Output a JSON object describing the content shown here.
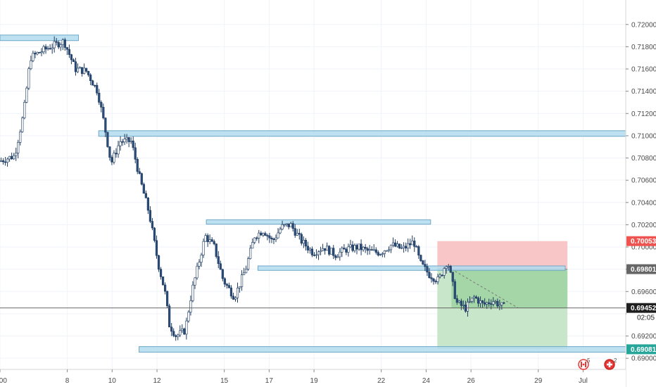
{
  "chart_data": {
    "type": "candlestick",
    "title": "",
    "xlabel": "",
    "ylabel": "",
    "ylim": [
      0.689,
      0.7222
    ],
    "y_ticks": [
      "0.72000",
      "0.71800",
      "0.71600",
      "0.71400",
      "0.71200",
      "0.71000",
      "0.70800",
      "0.70600",
      "0.70400",
      "0.70200",
      "0.70000",
      "0.69800",
      "0.69600",
      "0.69400",
      "0.69200",
      "0.69000"
    ],
    "x_ticks": [
      ":00",
      "8",
      "10",
      "12",
      "15",
      "17",
      "19",
      "22",
      "24",
      "26",
      "29",
      "Jul"
    ],
    "x_tick_days": [
      5,
      8,
      10,
      12,
      15,
      17,
      19,
      22,
      24,
      26,
      29,
      31
    ],
    "xlim_days": [
      5.0,
      32.9
    ],
    "grid": true,
    "price_path": [
      {
        "d": 5.0,
        "v": 0.7077
      },
      {
        "d": 5.7,
        "v": 0.7082
      },
      {
        "d": 6.1,
        "v": 0.712
      },
      {
        "d": 6.4,
        "v": 0.717
      },
      {
        "d": 6.8,
        "v": 0.7175
      },
      {
        "d": 7.3,
        "v": 0.718
      },
      {
        "d": 7.9,
        "v": 0.7185
      },
      {
        "d": 8.4,
        "v": 0.716
      },
      {
        "d": 8.9,
        "v": 0.7158
      },
      {
        "d": 9.4,
        "v": 0.714
      },
      {
        "d": 9.7,
        "v": 0.711
      },
      {
        "d": 10.0,
        "v": 0.7075
      },
      {
        "d": 10.4,
        "v": 0.7095
      },
      {
        "d": 10.9,
        "v": 0.7095
      },
      {
        "d": 11.3,
        "v": 0.706
      },
      {
        "d": 11.7,
        "v": 0.703
      },
      {
        "d": 12.1,
        "v": 0.6985
      },
      {
        "d": 12.4,
        "v": 0.696
      },
      {
        "d": 12.6,
        "v": 0.693
      },
      {
        "d": 12.9,
        "v": 0.692
      },
      {
        "d": 13.3,
        "v": 0.6925
      },
      {
        "d": 13.6,
        "v": 0.696
      },
      {
        "d": 13.9,
        "v": 0.6985
      },
      {
        "d": 14.2,
        "v": 0.701
      },
      {
        "d": 14.6,
        "v": 0.7
      },
      {
        "d": 15.0,
        "v": 0.697
      },
      {
        "d": 15.5,
        "v": 0.6955
      },
      {
        "d": 16.0,
        "v": 0.698
      },
      {
        "d": 16.4,
        "v": 0.701
      },
      {
        "d": 16.8,
        "v": 0.7015
      },
      {
        "d": 17.2,
        "v": 0.7005
      },
      {
        "d": 17.6,
        "v": 0.7018
      },
      {
        "d": 18.0,
        "v": 0.702
      },
      {
        "d": 18.5,
        "v": 0.7005
      },
      {
        "d": 19.0,
        "v": 0.6995
      },
      {
        "d": 19.5,
        "v": 0.7
      },
      {
        "d": 20.0,
        "v": 0.6993
      },
      {
        "d": 20.5,
        "v": 0.6998
      },
      {
        "d": 21.0,
        "v": 0.7
      },
      {
        "d": 21.5,
        "v": 0.6996
      },
      {
        "d": 22.0,
        "v": 0.6995
      },
      {
        "d": 22.5,
        "v": 0.7002
      },
      {
        "d": 23.0,
        "v": 0.6998
      },
      {
        "d": 23.5,
        "v": 0.7005
      },
      {
        "d": 23.8,
        "v": 0.6985
      },
      {
        "d": 24.2,
        "v": 0.6975
      },
      {
        "d": 24.6,
        "v": 0.697
      },
      {
        "d": 25.0,
        "v": 0.6988
      },
      {
        "d": 25.4,
        "v": 0.695
      },
      {
        "d": 25.8,
        "v": 0.6945
      },
      {
        "d": 26.2,
        "v": 0.6955
      },
      {
        "d": 26.6,
        "v": 0.6948
      },
      {
        "d": 27.0,
        "v": 0.6952
      },
      {
        "d": 27.5,
        "v": 0.6946
      }
    ],
    "zones": [
      {
        "type": "resistance",
        "x0": 5.0,
        "x1": 8.5,
        "ylow": 0.71855,
        "yhigh": 0.71905
      },
      {
        "type": "resistance",
        "x0": 9.4,
        "x1": 32.9,
        "ylow": 0.70995,
        "yhigh": 0.71045
      },
      {
        "type": "resistance",
        "x0": 14.2,
        "x1": 24.2,
        "ylow": 0.70205,
        "yhigh": 0.70245
      },
      {
        "type": "support",
        "x0": 16.5,
        "x1": 30.2,
        "ylow": 0.6979,
        "yhigh": 0.6983
      },
      {
        "type": "support",
        "x0": 11.2,
        "x1": 32.9,
        "ylow": 0.69055,
        "yhigh": 0.69105
      }
    ],
    "position": {
      "side": "short",
      "x0": 24.5,
      "x1": 30.3,
      "entry": 0.69801,
      "stop": 0.70053,
      "target": 0.69081,
      "current": 0.69452
    },
    "price_badges": [
      {
        "label": "0.70053",
        "value": 0.70053,
        "color": "#ef5350",
        "text_color": "#ffffff"
      },
      {
        "label": "0.69801",
        "value": 0.69801,
        "color": "#666666",
        "text_color": "#ffffff"
      },
      {
        "label": "0.69452",
        "value": 0.69452,
        "color": "#1f1f1f",
        "text_color": "#ffffff"
      },
      {
        "label": "0.69081",
        "value": 0.69081,
        "color": "#26a69a",
        "text_color": "#ffffff"
      }
    ],
    "countdown": "02:05",
    "colors": {
      "candle_up": "#ffffff",
      "candle_down": "#2a4d7a",
      "candle_border": "#1e3a5f",
      "zone_fill": "#b3dcee",
      "zone_stroke": "#6fa8c8",
      "loss_fill": "#f8c6c6",
      "profit_fill": "#c8e6c9",
      "profit_active": "#a5d6a7",
      "grid": "#f0f3fa"
    }
  },
  "event_markers": [
    {
      "icon": "canada-flag-icon",
      "count": "5"
    },
    {
      "icon": "swiss-flag-icon",
      "count": "2"
    }
  ]
}
